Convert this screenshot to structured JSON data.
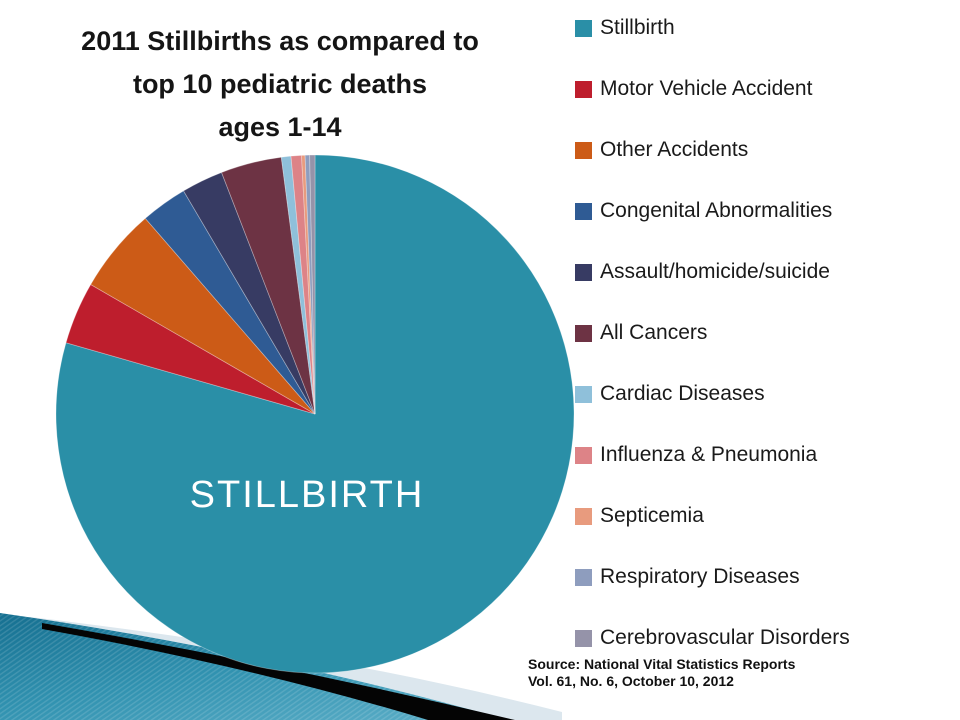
{
  "title": {
    "lines": [
      "2011 Stillbirths as compared to",
      "top 10 pediatric deaths",
      "ages 1-14"
    ]
  },
  "source": {
    "line1": "Source: National Vital Statistics Reports",
    "line2": "Vol. 61, No. 6, October 10, 2012"
  },
  "chart_data": {
    "type": "pie",
    "title": "2011 Stillbirths as compared to top 10 pediatric deaths ages 1-14",
    "center_label": "STILLBIRTH",
    "legend_position": "right",
    "start_angle_deg": 0,
    "direction": "clockwise",
    "values_are": "percent of total (estimated from slice angles)",
    "series": [
      {
        "label": "Stillbirth",
        "value_pct": 79.5,
        "color": "#2A8FA7"
      },
      {
        "label": "Motor Vehicle Accident",
        "value_pct": 3.9,
        "color": "#BE1E2D"
      },
      {
        "label": "Other Accidents",
        "value_pct": 5.3,
        "color": "#CC5B17"
      },
      {
        "label": "Congenital Abnormalities",
        "value_pct": 2.9,
        "color": "#2F5B94"
      },
      {
        "label": "Assault/homicide/suicide",
        "value_pct": 2.6,
        "color": "#373B63"
      },
      {
        "label": "All Cancers",
        "value_pct": 3.8,
        "color": "#6D3344"
      },
      {
        "label": "Cardiac Diseases",
        "value_pct": 0.6,
        "color": "#8FC0DA"
      },
      {
        "label": "Influenza & Pneumonia",
        "value_pct": 0.65,
        "color": "#DD8387"
      },
      {
        "label": "Septicemia",
        "value_pct": 0.22,
        "color": "#E89B7E"
      },
      {
        "label": "Respiratory Diseases",
        "value_pct": 0.28,
        "color": "#8E9DBE"
      },
      {
        "label": "Cerebrovascular Disorders",
        "value_pct": 0.33,
        "color": "#9593A9"
      }
    ]
  },
  "decoration": {
    "pale_band_color": "#DCE7EE",
    "black_band_color": "#040404",
    "teal_dark": "#156F90",
    "teal_mid": "#3192B0",
    "teal_light": "#56AAC4"
  }
}
